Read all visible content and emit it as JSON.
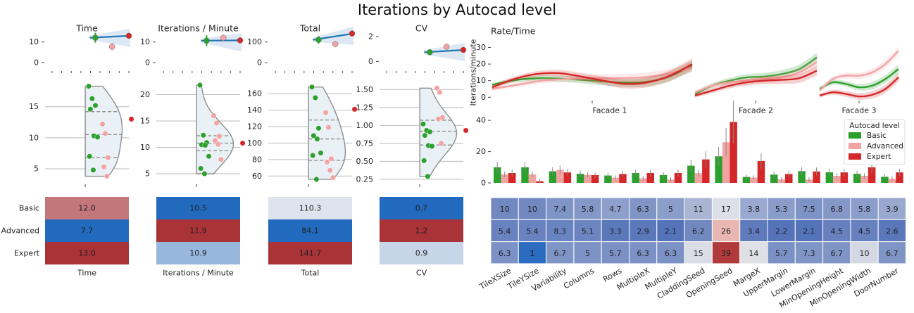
{
  "title": "Iterations by Autocad level",
  "levels": [
    "Basic",
    "Advanced",
    "Expert"
  ],
  "level_colors": {
    "Basic": "#2ca02c",
    "Advanced": "#f4a3a3",
    "Expert": "#d62728"
  },
  "chart_data": [
    {
      "id": "time",
      "type": "scatter",
      "title": "Time",
      "xlabel": "Time",
      "top": {
        "yticks": [
          0,
          10
        ],
        "ylim": [
          -3,
          15
        ]
      },
      "raincloud": {
        "yticks": [
          5,
          10,
          15
        ],
        "ylim": [
          2.5,
          19.5
        ],
        "points": {
          "Basic": [
            18.3,
            16.3,
            15.2,
            14.6,
            10.3,
            10.1,
            7.0,
            4.8
          ],
          "Advanced": [
            12.2,
            10.7,
            6.8,
            5.3,
            3.8
          ],
          "Expert": [
            13.0
          ]
        }
      },
      "table": {
        "Basic": 12.0,
        "Advanced": 7.7,
        "Expert": 13.0
      },
      "table_labels": {
        "Basic": "12.0",
        "Advanced": "7.7",
        "Expert": "13.0"
      }
    },
    {
      "id": "ipm",
      "type": "scatter",
      "title": "Iterations / Minute",
      "xlabel": "Iterations / Minute",
      "top": {
        "yticks": [
          0,
          10
        ],
        "ylim": [
          -3,
          15
        ]
      },
      "raincloud": {
        "yticks": [
          5,
          10,
          15,
          20
        ],
        "ylim": [
          3,
          23
        ],
        "points": {
          "Basic": [
            21.8,
            12.3,
            10.9,
            10.5,
            10.4,
            8.3,
            6.0,
            5.0
          ],
          "Advanced": [
            16.0,
            14.6,
            12.1,
            11.3,
            10.6,
            7.7
          ],
          "Expert": [
            10.8
          ]
        }
      },
      "table": {
        "Basic": 10.5,
        "Advanced": 11.9,
        "Expert": 10.9
      },
      "table_labels": {
        "Basic": "10.5",
        "Advanced": "11.9",
        "Expert": "10.9"
      }
    },
    {
      "id": "total",
      "type": "scatter",
      "title": "Total",
      "xlabel": "Total",
      "top": {
        "yticks": [
          0,
          100
        ],
        "ylim": [
          -30,
          150
        ]
      },
      "raincloud": {
        "yticks": [
          60,
          80,
          100,
          120,
          140,
          160
        ],
        "ylim": [
          50,
          178
        ],
        "points": {
          "Basic": [
            168,
            155,
            118,
            109,
            105,
            88,
            85,
            56
          ],
          "Advanced": [
            137,
            119,
            81,
            77,
            67,
            58
          ],
          "Expert": [
            141
          ]
        }
      },
      "table": {
        "Basic": 110.3,
        "Advanced": 84.1,
        "Expert": 141.7
      },
      "table_labels": {
        "Basic": "110.3",
        "Advanced": "84.1",
        "Expert": "141.7"
      }
    },
    {
      "id": "cv",
      "type": "scatter",
      "title": "CV",
      "xlabel": "CV",
      "top": {
        "yticks": [
          0,
          2
        ],
        "ylim": [
          -0.6,
          2.4
        ]
      },
      "raincloud": {
        "yticks": [
          0.25,
          0.5,
          0.75,
          1.0,
          1.25,
          1.5
        ],
        "yticklabels": [
          "0.25",
          "0.50",
          "0.75",
          "1.00",
          "1.25",
          "1.50"
        ],
        "ylim": [
          0.18,
          1.65
        ],
        "points": {
          "Basic": [
            1.02,
            0.93,
            0.91,
            0.86,
            0.72,
            0.71,
            0.51,
            0.29
          ],
          "Advanced": [
            1.52,
            1.46,
            1.11,
            1.09,
            0.75
          ],
          "Expert": [
            0.93
          ]
        }
      },
      "table": {
        "Basic": 0.7,
        "Advanced": 1.2,
        "Expert": 0.9
      },
      "table_labels": {
        "Basic": "0.7",
        "Advanced": "1.2",
        "Expert": "0.9"
      }
    },
    {
      "id": "rate",
      "type": "line",
      "title": "Rate/Time",
      "ylabel": "Iterations/minute",
      "yticks": [
        0,
        10,
        20,
        30
      ],
      "ylim": [
        -2,
        34
      ],
      "facets": [
        "Facade 1",
        "Facade 2",
        "Facade 3"
      ],
      "series": [
        {
          "name": "Basic",
          "facets": [
            [
              7.5,
              10.5,
              11.5,
              11,
              10,
              9,
              9,
              12,
              19
            ],
            [
              2,
              7,
              10,
              12,
              12.5,
              14,
              17,
              24
            ],
            [
              5,
              9,
              8,
              6,
              7,
              11,
              17
            ]
          ]
        },
        {
          "name": "Advanced",
          "facets": [
            [
              5,
              7.5,
              10,
              11,
              11.5,
              11.5,
              12,
              14,
              18
            ],
            [
              3,
              7,
              9,
              10,
              11,
              12,
              15,
              21
            ],
            [
              4,
              11,
              13,
              13,
              15,
              20,
              28
            ]
          ]
        },
        {
          "name": "Expert",
          "facets": [
            [
              6,
              11,
              14,
              14.5,
              12.5,
              10,
              8,
              9,
              13,
              20
            ],
            [
              1,
              4,
              7,
              9,
              10,
              10.5,
              11.5,
              16
            ],
            [
              1,
              3,
              2,
              0.5,
              1.5,
              5,
              12
            ]
          ]
        }
      ]
    },
    {
      "id": "params",
      "type": "bar",
      "yticks": [
        0,
        20,
        40
      ],
      "ylim": [
        0,
        45
      ],
      "legend_title": "Autocad level",
      "legend_position": "right",
      "categories": [
        "TileXSize",
        "TileYSize",
        "Variability",
        "Columns",
        "Rows",
        "MultipleX",
        "MultipleY",
        "CladdingSeed",
        "OpeningSeed",
        "MargeX",
        "UpperMargin",
        "LowerMargin",
        "MinOpeningHeight",
        "MinOpeningWidth",
        "DoorNumber"
      ],
      "series": [
        {
          "name": "Basic",
          "values": [
            10,
            10,
            7.4,
            5.8,
            4.7,
            6.3,
            5,
            11,
            17,
            3.8,
            5.3,
            7.5,
            6.8,
            5.8,
            3.9
          ],
          "labels": [
            "10",
            "10",
            "7.4",
            "5.8",
            "4.7",
            "6.3",
            "5",
            "11",
            "17",
            "3.8",
            "5.3",
            "7.5",
            "6.8",
            "5.8",
            "3.9"
          ]
        },
        {
          "name": "Advanced",
          "values": [
            5.4,
            5.4,
            8.3,
            5.1,
            3.3,
            2.9,
            2.1,
            6.2,
            26,
            3.4,
            2.2,
            2.1,
            4.5,
            4.5,
            2.6
          ],
          "labels": [
            "5.4",
            "5.4",
            "8.3",
            "5.1",
            "3.3",
            "2.9",
            "2.1",
            "6.2",
            "26",
            "3.4",
            "2.2",
            "2.1",
            "4.5",
            "4.5",
            "2.6"
          ]
        },
        {
          "name": "Expert",
          "values": [
            6.3,
            1,
            6.7,
            5,
            5.7,
            6.3,
            6.3,
            15,
            39,
            14,
            5.7,
            7.3,
            6.7,
            10,
            6.7
          ],
          "labels": [
            "6.3",
            "1",
            "6.7",
            "5",
            "5.7",
            "6.3",
            "6.3",
            "15",
            "39",
            "14",
            "5.7",
            "7.3",
            "6.7",
            "10",
            "6.7"
          ]
        }
      ],
      "heatmap_colors": [
        [
          "#7188c1",
          "#7188c1",
          "#7f95c6",
          "#8498c8",
          "#8d9fca",
          "#8095c6",
          "#8b9eca",
          "#a9b5d3",
          "#dcdfe8",
          "#9aa9cf",
          "#8a9cc9",
          "#7e93c5",
          "#8598c8",
          "#8b9dca",
          "#98a8ce"
        ],
        [
          "#6a82bf",
          "#6a82bf",
          "#6784c0",
          "#6c84bf",
          "#5b78bb",
          "#5b78bb",
          "#5573b9",
          "#7188c1",
          "#e9b7b1",
          "#5f7bbc",
          "#5573b9",
          "#5573b9",
          "#6781bf",
          "#6781bf",
          "#5a77bb"
        ],
        [
          "#7c91c5",
          "#2b6bc0",
          "#7f95c6",
          "#7e93c5",
          "#7b91c5",
          "#7c91c5",
          "#7c91c5",
          "#dadde6",
          "#b13a3c",
          "#dfe0e6",
          "#7b91c5",
          "#7f95c6",
          "#7f95c6",
          "#d4d8e3",
          "#7f95c6"
        ]
      ]
    }
  ]
}
